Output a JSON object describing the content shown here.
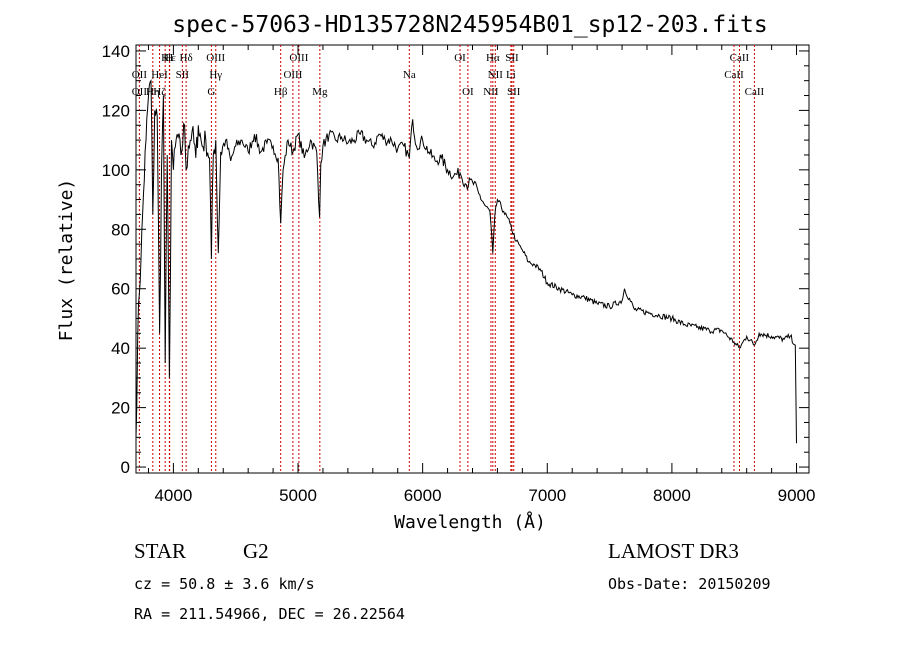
{
  "chart_data": {
    "type": "line",
    "title": "spec-57063-HD135728N245954B01_sp12-203.fits",
    "xlabel": "Wavelength (Å)",
    "ylabel": "Flux (relative)",
    "xlim": [
      3700,
      9100
    ],
    "ylim": [
      -2,
      142
    ],
    "xticks": [
      4000,
      5000,
      6000,
      7000,
      8000,
      9000
    ],
    "yticks": [
      0,
      20,
      40,
      60,
      80,
      100,
      120,
      140
    ],
    "series": [
      {
        "name": "flux",
        "x": [
          3700,
          3720,
          3740,
          3760,
          3780,
          3800,
          3820,
          3835,
          3850,
          3870,
          3889,
          3905,
          3920,
          3934,
          3950,
          3968,
          3985,
          4000,
          4030,
          4060,
          4090,
          4102,
          4120,
          4150,
          4180,
          4200,
          4230,
          4260,
          4290,
          4305,
          4320,
          4340,
          4360,
          4380,
          4420,
          4460,
          4500,
          4550,
          4600,
          4650,
          4700,
          4750,
          4800,
          4840,
          4861,
          4880,
          4920,
          4960,
          5000,
          5050,
          5100,
          5150,
          5173,
          5183,
          5200,
          5250,
          5300,
          5350,
          5400,
          5450,
          5500,
          5550,
          5600,
          5650,
          5700,
          5750,
          5800,
          5850,
          5893,
          5920,
          5950,
          6000,
          6050,
          6100,
          6150,
          6200,
          6250,
          6300,
          6350,
          6400,
          6450,
          6500,
          6540,
          6563,
          6580,
          6600,
          6650,
          6700,
          6750,
          6800,
          6850,
          6900,
          6950,
          7000,
          7100,
          7200,
          7300,
          7400,
          7500,
          7600,
          7620,
          7700,
          7800,
          7900,
          8000,
          8100,
          8200,
          8300,
          8400,
          8498,
          8542,
          8600,
          8662,
          8700,
          8800,
          8900,
          8950,
          8990,
          9000
        ],
        "values": [
          10,
          55,
          70,
          92,
          110,
          125,
          130,
          85,
          120,
          118,
          45,
          100,
          125,
          35,
          105,
          30,
          110,
          100,
          112,
          105,
          115,
          100,
          108,
          113,
          104,
          115,
          108,
          110,
          104,
          70,
          105,
          110,
          72,
          106,
          110,
          103,
          108,
          110,
          106,
          112,
          106,
          109,
          108,
          104,
          82,
          100,
          110,
          106,
          112,
          104,
          110,
          106,
          84,
          102,
          108,
          112,
          110,
          111,
          109,
          110,
          112,
          110,
          108,
          112,
          110,
          110,
          107,
          108,
          104,
          117,
          108,
          110,
          106,
          103,
          104,
          100,
          98,
          99,
          95,
          96,
          92,
          88,
          86,
          72,
          85,
          90,
          86,
          82,
          76,
          73,
          69,
          68,
          66,
          62,
          60,
          58,
          57,
          55,
          54,
          56,
          60,
          53,
          52,
          51,
          50,
          48,
          47,
          46,
          46,
          42,
          40,
          44,
          41,
          45,
          44,
          43,
          44,
          41,
          8
        ]
      }
    ],
    "line_markers": [
      {
        "wave": 3970,
        "label": "Hε",
        "row": 1
      },
      {
        "wave": 3934,
        "label": "K",
        "row": 1
      },
      {
        "wave": 3968,
        "label": "H",
        "row": 1
      },
      {
        "wave": 4102,
        "label": "Hδ",
        "row": 1
      },
      {
        "wave": 3727,
        "label": "OII",
        "row": 2
      },
      {
        "wave": 3889,
        "label": "HeI",
        "row": 2
      },
      {
        "wave": 4072,
        "label": "SII",
        "row": 2
      },
      {
        "wave": 3727,
        "label": "OII",
        "row": 3
      },
      {
        "wave": 3835,
        "label": "Hη",
        "row": 3
      },
      {
        "wave": 3889,
        "label": "Hζ",
        "row": 3
      },
      {
        "wave": 4340,
        "label": "OIII",
        "row": 1
      },
      {
        "wave": 4340,
        "label": "Hγ",
        "row": 2
      },
      {
        "wave": 4305,
        "label": "G",
        "row": 3
      },
      {
        "wave": 5007,
        "label": "OIII",
        "row": 1
      },
      {
        "wave": 4959,
        "label": "OIII",
        "row": 2
      },
      {
        "wave": 4861,
        "label": "Hβ",
        "row": 3
      },
      {
        "wave": 5175,
        "label": "Mg",
        "row": 3
      },
      {
        "wave": 5893,
        "label": "Na",
        "row": 2
      },
      {
        "wave": 6300,
        "label": "OI",
        "row": 1
      },
      {
        "wave": 6363,
        "label": "OI",
        "row": 3
      },
      {
        "wave": 6563,
        "label": "Hα",
        "row": 1
      },
      {
        "wave": 6583,
        "label": "NII",
        "row": 2
      },
      {
        "wave": 6548,
        "label": "NII",
        "row": 3
      },
      {
        "wave": 6717,
        "label": "SII",
        "row": 1
      },
      {
        "wave": 6708,
        "label": "Li",
        "row": 2
      },
      {
        "wave": 6731,
        "label": "SII",
        "row": 3
      },
      {
        "wave": 8542,
        "label": "CaII",
        "row": 1
      },
      {
        "wave": 8498,
        "label": "CaII",
        "row": 2
      },
      {
        "wave": 8662,
        "label": "CaII",
        "row": 3
      }
    ],
    "marker_color": "#cc0000"
  },
  "info": {
    "class": "STAR",
    "subclass": "G2",
    "cz": "cz = 50.8 ± 3.6 km/s",
    "coords": "RA = 211.54966, DEC =  26.22564",
    "survey": "LAMOST DR3",
    "obs_date": "Obs-Date: 20150209"
  }
}
